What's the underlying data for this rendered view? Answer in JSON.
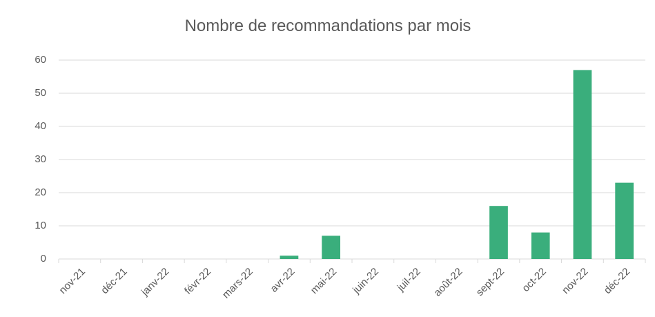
{
  "chart_data": {
    "type": "bar",
    "title": "Nombre de recommandations par mois",
    "categories": [
      "nov-21",
      "déc-21",
      "janv-22",
      "févr-22",
      "mars-22",
      "avr-22",
      "mai-22",
      "juin-22",
      "juil-22",
      "août-22",
      "sept-22",
      "oct-22",
      "nov-22",
      "déc-22"
    ],
    "values": [
      0,
      0,
      0,
      0,
      0,
      1,
      7,
      0,
      0,
      0,
      16,
      8,
      57,
      23
    ],
    "color": "#3aae7c",
    "ylim": [
      0,
      60
    ],
    "yticks": [
      0,
      10,
      20,
      30,
      40,
      50,
      60
    ],
    "grid": true
  }
}
